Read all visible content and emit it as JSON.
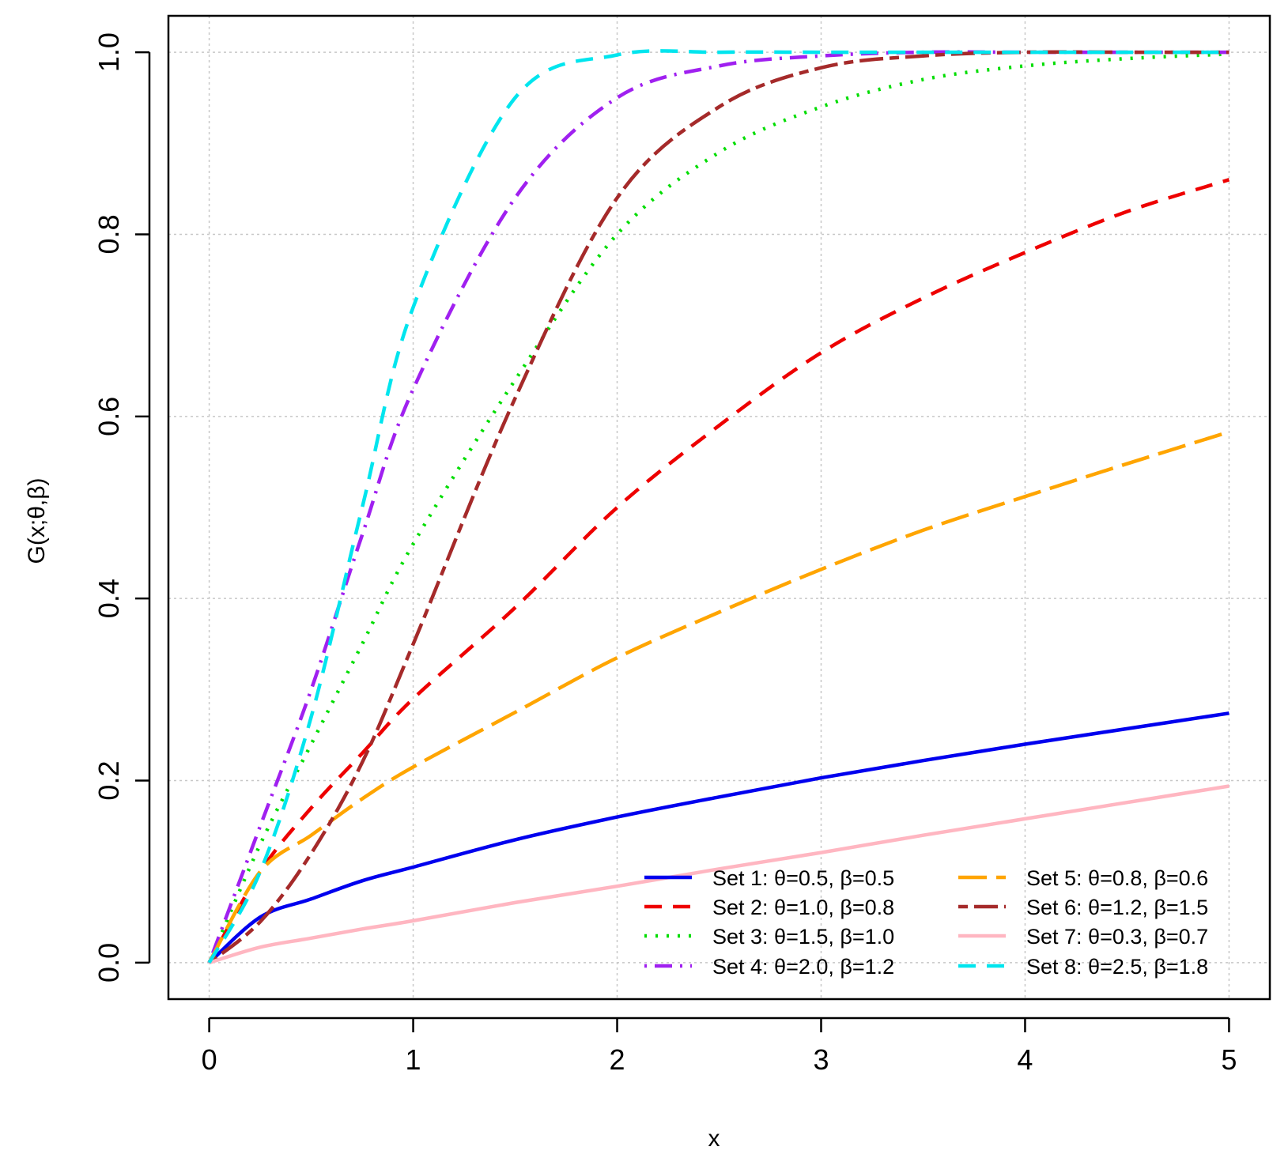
{
  "chart_data": {
    "type": "line",
    "title": "",
    "xlabel": "x",
    "ylabel": "G(x;θ,β)",
    "xlim": [
      -0.2,
      5.2
    ],
    "ylim": [
      -0.04,
      1.04
    ],
    "xticks": [
      0,
      1,
      2,
      3,
      4,
      5
    ],
    "yticks": [
      0.0,
      0.2,
      0.4,
      0.6,
      0.8,
      1.0
    ],
    "xtick_labels": [
      "0",
      "1",
      "2",
      "3",
      "4",
      "5"
    ],
    "ytick_labels": [
      "0.0",
      "0.2",
      "0.4",
      "0.6",
      "0.8",
      "1.0"
    ],
    "grid": true,
    "legend_position": "bottom-right",
    "x": [
      0,
      0.25,
      0.5,
      0.75,
      1,
      1.5,
      2,
      2.5,
      3,
      3.5,
      4,
      4.5,
      5
    ],
    "series": [
      {
        "name": "Set 1: θ=0.5, β=0.5",
        "color": "#0000ee",
        "dash": "solid",
        "values": [
          0,
          0.05,
          0.07,
          0.09,
          0.105,
          0.135,
          0.16,
          0.182,
          0.203,
          0.222,
          0.24,
          0.257,
          0.274
        ]
      },
      {
        "name": "Set 2: θ=1.0, β=0.8",
        "color": "#ee0000",
        "dash": "dashed",
        "values": [
          0,
          0.1,
          0.17,
          0.23,
          0.29,
          0.39,
          0.5,
          0.59,
          0.67,
          0.73,
          0.78,
          0.825,
          0.86
        ]
      },
      {
        "name": "Set 3: θ=1.5, β=1.0",
        "color": "#00dd00",
        "dash": "dotted",
        "values": [
          0,
          0.13,
          0.24,
          0.35,
          0.46,
          0.64,
          0.8,
          0.89,
          0.94,
          0.97,
          0.985,
          0.993,
          0.998
        ]
      },
      {
        "name": "Set 4: θ=2.0, β=1.2",
        "color": "#a020f0",
        "dash": "dotdash",
        "values": [
          0,
          0.15,
          0.3,
          0.47,
          0.63,
          0.84,
          0.95,
          0.985,
          0.996,
          1.0,
          1.0,
          1.0,
          1.0
        ]
      },
      {
        "name": "Set 5: θ=0.8, β=0.6",
        "color": "#ffa500",
        "dash": "longdash",
        "values": [
          0,
          0.1,
          0.14,
          0.18,
          0.215,
          0.275,
          0.335,
          0.385,
          0.432,
          0.475,
          0.512,
          0.548,
          0.583
        ]
      },
      {
        "name": "Set 6: θ=1.2, β=1.5",
        "color": "#a52a2a",
        "dash": "twodash",
        "values": [
          0,
          0.045,
          0.12,
          0.22,
          0.35,
          0.62,
          0.84,
          0.94,
          0.983,
          0.996,
          1.0,
          1.0,
          1.0
        ]
      },
      {
        "name": "Set 7: θ=0.3, β=0.7",
        "color": "#ffb6c1",
        "dash": "solid",
        "values": [
          0,
          0.017,
          0.027,
          0.037,
          0.046,
          0.066,
          0.084,
          0.103,
          0.121,
          0.14,
          0.158,
          0.176,
          0.194
        ]
      },
      {
        "name": "Set 8: θ=2.5, β=1.8",
        "color": "#00e5ee",
        "dash": "dashed",
        "values": [
          0,
          0.1,
          0.27,
          0.5,
          0.72,
          0.95,
          0.997,
          1.0,
          1.0,
          1.0,
          1.0,
          1.0,
          1.0
        ]
      }
    ]
  }
}
